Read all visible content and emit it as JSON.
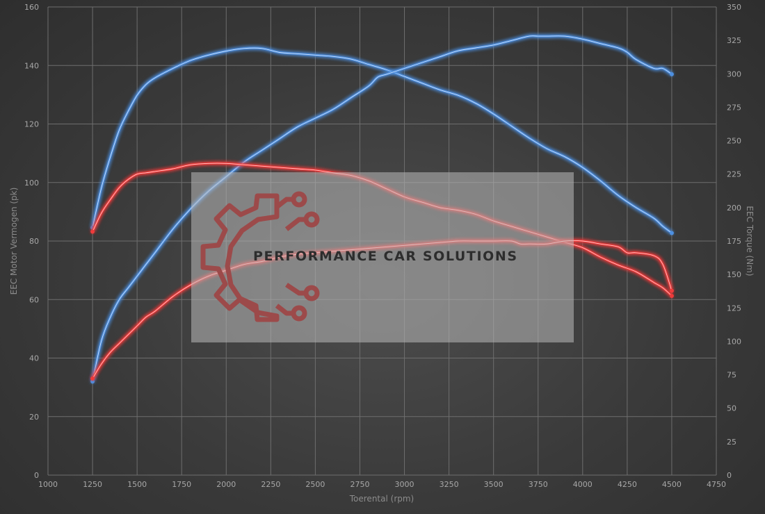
{
  "chart_data": {
    "type": "line",
    "xlabel": "Toerental (rpm)",
    "ylabel": "EEC Motor Vermogen (pk)",
    "y2label": "EEC Torque (Nm)",
    "xlim": [
      1000,
      4750
    ],
    "ylim": [
      0,
      160
    ],
    "y2lim": [
      0,
      350
    ],
    "x_ticks": [
      1000,
      1250,
      1500,
      1750,
      2000,
      2250,
      2500,
      2750,
      3000,
      3250,
      3500,
      3750,
      4000,
      4250,
      4500,
      4750
    ],
    "y_ticks": [
      0,
      20,
      40,
      60,
      80,
      100,
      120,
      140,
      160
    ],
    "y2_ticks": [
      0,
      25,
      50,
      75,
      100,
      125,
      150,
      175,
      200,
      225,
      250,
      275,
      300,
      325,
      350
    ],
    "grid": true,
    "series": [
      {
        "axis": "right",
        "color": "#4d8fe0",
        "x": [
          1250,
          1300,
          1350,
          1400,
          1450,
          1500,
          1550,
          1600,
          1700,
          1800,
          1900,
          2000,
          2100,
          2200,
          2300,
          2400,
          2500,
          2600,
          2700,
          2800,
          2900,
          3000,
          3100,
          3200,
          3300,
          3400,
          3500,
          3600,
          3700,
          3800,
          3900,
          4000,
          4100,
          4200,
          4300,
          4400,
          4450,
          4500
        ],
        "values": [
          185,
          215,
          238,
          258,
          272,
          284,
          292,
          297,
          304,
          310,
          314,
          317,
          319,
          319,
          316,
          315,
          314,
          313,
          311,
          307,
          303,
          298,
          293,
          288,
          284,
          278,
          270,
          261,
          252,
          244,
          238,
          230,
          220,
          209,
          200,
          192,
          186,
          181
        ]
      },
      {
        "axis": "left",
        "color": "#4d8fe0",
        "x": [
          1250,
          1300,
          1350,
          1400,
          1450,
          1500,
          1550,
          1600,
          1700,
          1800,
          1900,
          2000,
          2100,
          2200,
          2300,
          2400,
          2500,
          2600,
          2700,
          2800,
          2850,
          2900,
          3000,
          3100,
          3200,
          3300,
          3400,
          3500,
          3600,
          3700,
          3750,
          3800,
          3900,
          4000,
          4100,
          4200,
          4250,
          4300,
          4400,
          4450,
          4500
        ],
        "values": [
          32,
          46,
          54,
          60,
          64,
          68,
          72,
          76,
          84,
          91,
          97,
          102,
          107,
          111,
          115,
          119,
          122,
          125,
          129,
          133,
          136,
          137,
          139,
          141,
          143,
          145,
          146,
          147,
          148.5,
          150,
          150,
          150,
          150,
          149,
          147.5,
          146,
          144.5,
          142,
          139,
          139,
          137
        ]
      },
      {
        "axis": "right",
        "color": "#ee3b3b",
        "x": [
          1250,
          1300,
          1350,
          1400,
          1450,
          1500,
          1550,
          1600,
          1700,
          1800,
          1900,
          2000,
          2100,
          2200,
          2300,
          2400,
          2500,
          2600,
          2700,
          2800,
          2900,
          3000,
          3100,
          3200,
          3300,
          3400,
          3500,
          3600,
          3700,
          3800,
          3900,
          4000,
          4100,
          4200,
          4300,
          4400,
          4450,
          4500
        ],
        "values": [
          182,
          196,
          206,
          215,
          221,
          225,
          226,
          227,
          229,
          232,
          233,
          233,
          232,
          231,
          230,
          229,
          228,
          226,
          224,
          220,
          214,
          208,
          204,
          200,
          198,
          195,
          190,
          186,
          182,
          178,
          174,
          170,
          163,
          157,
          152,
          144,
          140,
          134
        ]
      },
      {
        "axis": "left",
        "color": "#ee3b3b",
        "x": [
          1250,
          1300,
          1350,
          1400,
          1450,
          1500,
          1550,
          1600,
          1700,
          1800,
          1900,
          2000,
          2100,
          2200,
          2300,
          2400,
          2500,
          2600,
          2700,
          2800,
          2900,
          3000,
          3100,
          3200,
          3300,
          3400,
          3500,
          3600,
          3650,
          3700,
          3800,
          3900,
          4000,
          4100,
          4200,
          4250,
          4300,
          4400,
          4450,
          4500
        ],
        "values": [
          33,
          38,
          42,
          45,
          48,
          51,
          54,
          56,
          61,
          65,
          68,
          70,
          72,
          73,
          74.5,
          75.5,
          76,
          76.5,
          77,
          77.5,
          78,
          78.5,
          79,
          79.5,
          80,
          80,
          80,
          80,
          79,
          79,
          79,
          80,
          80,
          79,
          78,
          76,
          76,
          75,
          72,
          63
        ]
      }
    ],
    "annotations": [
      "PERFORMANCE CAR SOLUTIONS"
    ]
  }
}
